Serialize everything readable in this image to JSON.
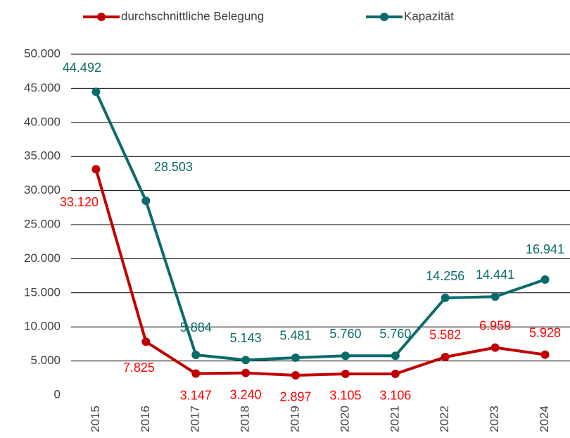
{
  "chart_data": {
    "type": "line",
    "categories": [
      "2015",
      "2016",
      "2017",
      "2018",
      "2019",
      "2020",
      "2021",
      "2022",
      "2023",
      "2024"
    ],
    "series": [
      {
        "name": "durchschnittliche Belegung",
        "color": "#c00000",
        "label_color": "#ff0000",
        "values": [
          33120,
          7825,
          3147,
          3240,
          2897,
          3105,
          3106,
          5582,
          6959,
          5928
        ],
        "value_labels": [
          "33.120",
          "7.825",
          "3.147",
          "3.240",
          "2.897",
          "3.105",
          "3.106",
          "5.582",
          "6.959",
          "5.928"
        ]
      },
      {
        "name": "Kapazität",
        "color": "#0b6b6b",
        "label_color": "#0b6b6b",
        "values": [
          44492,
          28503,
          5884,
          5143,
          5481,
          5760,
          5760,
          14256,
          14441,
          16941
        ],
        "value_labels": [
          "44.492",
          "28.503",
          "5.884",
          "5.143",
          "5.481",
          "5.760",
          "5.760",
          "14.256",
          "14.441",
          "16.941"
        ]
      }
    ],
    "ylim": [
      0,
      50000
    ],
    "yticks": [
      0,
      {
        "value": 5000,
        "label": "5.000"
      },
      {
        "value": 10000,
        "label": "10.000"
      },
      {
        "value": 15000,
        "label": "15.000"
      },
      {
        "value": 20000,
        "label": "20.000"
      },
      {
        "value": 25000,
        "label": "25.000"
      },
      {
        "value": 30000,
        "label": "30.000"
      },
      {
        "value": 35000,
        "label": "35.000"
      },
      {
        "value": 40000,
        "label": "40.000"
      },
      {
        "value": 45000,
        "label": "45.000"
      },
      {
        "value": 50000,
        "label": "50.000"
      }
    ],
    "grid": true,
    "legend": "top"
  }
}
